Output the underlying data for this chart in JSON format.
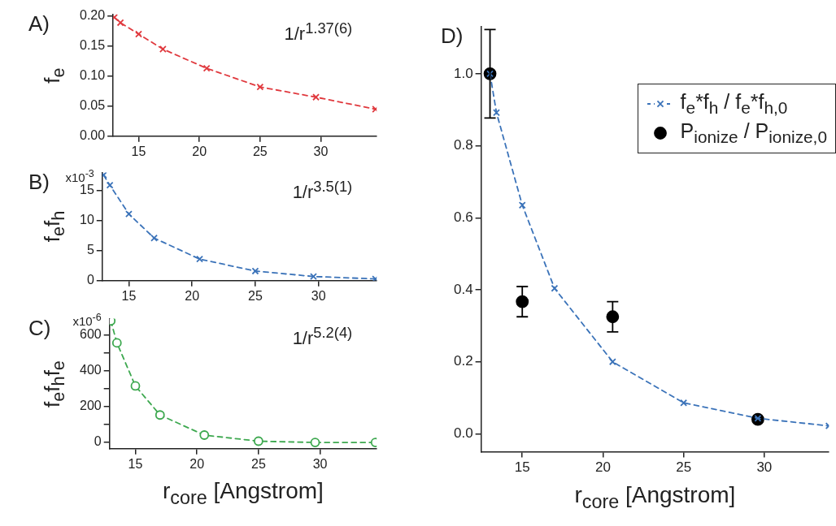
{
  "chart_data": [
    {
      "type": "line",
      "title": "A)",
      "ylabel": "f$_{e}$",
      "annotations": [
        "1/r$^{1.37(6)}$"
      ],
      "marker": "cross",
      "line_style": "dashed",
      "grid": false,
      "legend": false,
      "x": [
        13,
        13.5,
        15,
        17,
        20.6,
        25,
        29.6,
        34.5
      ],
      "series": [
        {
          "color": "#e0393e",
          "values": [
            0.198,
            0.189,
            0.17,
            0.145,
            0.113,
            0.082,
            0.065,
            0.045
          ]
        }
      ],
      "xlim": [
        12.9,
        34.6
      ],
      "xticks": [
        15,
        20,
        25,
        30
      ],
      "ylim": [
        0,
        0.203
      ],
      "yticks": [
        {
          "value": 0,
          "label": "0.00"
        },
        {
          "value": 0.05,
          "label": "0.05"
        },
        {
          "value": 0.1,
          "label": "0.10"
        },
        {
          "value": 0.15,
          "label": "0.15"
        },
        {
          "value": 0.2,
          "label": "0.20"
        }
      ]
    },
    {
      "type": "line",
      "title": "B)",
      "ylabel": "f$_{e}$f$_{h}$",
      "annotations": [
        "1/r$^{3.5(1)}$",
        "x10$^{-3}$"
      ],
      "marker": "cross",
      "line_style": "dashed",
      "grid": false,
      "legend": false,
      "x": [
        13,
        13.5,
        15,
        17,
        20.6,
        25,
        29.6,
        34.5
      ],
      "series": [
        {
          "color": "#3b73b9",
          "values": [
            17.6,
            15.9,
            11.1,
            7.1,
            3.6,
            1.6,
            0.7,
            0.3
          ]
        }
      ],
      "xlim": [
        12.9,
        34.6
      ],
      "xticks": [
        15,
        20,
        25,
        30
      ],
      "ylim": [
        0,
        18
      ],
      "yticks": [
        0,
        5,
        10,
        15
      ]
    },
    {
      "type": "line",
      "title": "C)",
      "ylabel": "f$_{e}$f$_{h}$f$_{e}$",
      "xlabel": "r$_{core}$ [Angstrom]",
      "annotations": [
        "1/r$^{5.2(4)}$",
        "x10$^{-6}$"
      ],
      "marker": "circle",
      "line_style": "dashed",
      "grid": false,
      "legend": false,
      "x": [
        13,
        13.5,
        15,
        17,
        20.6,
        25,
        29.6,
        34.5
      ],
      "series": [
        {
          "color": "#3da84f",
          "values": [
            678,
            555,
            315,
            153,
            41,
            7,
            0,
            0
          ]
        }
      ],
      "xlim": [
        12.9,
        34.6
      ],
      "xticks": [
        15,
        20,
        25,
        30
      ],
      "ylim": [
        -35,
        690
      ],
      "yticks": [
        0,
        {
          "value": 100,
          "label": null
        },
        200,
        {
          "value": 300,
          "label": null
        },
        400,
        {
          "value": 500,
          "label": null
        },
        600
      ]
    },
    {
      "type": "line",
      "title": "D)",
      "xlabel": "r$_{core}$ [Angstrom]",
      "grid": false,
      "legend": "top right",
      "series": [
        {
          "name": "f$_{e}$*f$_{h}$ / f$_{e}$*f$_{h,0}$",
          "type": "line",
          "marker": "cross",
          "line_style": "dashed",
          "color": "#3b73b9",
          "x": [
            13,
            13.4,
            15,
            17,
            20.6,
            25,
            29.6,
            34
          ],
          "values": [
            1.0,
            0.892,
            0.635,
            0.404,
            0.2,
            0.086,
            0.043,
            0.022
          ]
        },
        {
          "name": "P$_{ionize}$ / P$_{ionize,0}$",
          "type": "scatter",
          "marker": "circle",
          "color": "#000000",
          "x": [
            13,
            15,
            20.6,
            29.6
          ],
          "values": [
            1.0,
            0.367,
            0.325,
            0.04
          ],
          "errors": [
            0.123,
            0.042,
            0.042,
            null
          ]
        }
      ],
      "xlim": [
        12.45,
        34
      ],
      "xticks": [
        15,
        20,
        25,
        30
      ],
      "ylim": [
        -0.05,
        1.13
      ],
      "yticks": [
        {
          "value": 0,
          "label": "0.0"
        },
        {
          "value": 0.2,
          "label": "0.2"
        },
        {
          "value": 0.4,
          "label": "0.4"
        },
        {
          "value": 0.6,
          "label": "0.6"
        },
        {
          "value": 0.8,
          "label": "0.8"
        },
        {
          "value": 1,
          "label": "1.0"
        }
      ]
    }
  ]
}
